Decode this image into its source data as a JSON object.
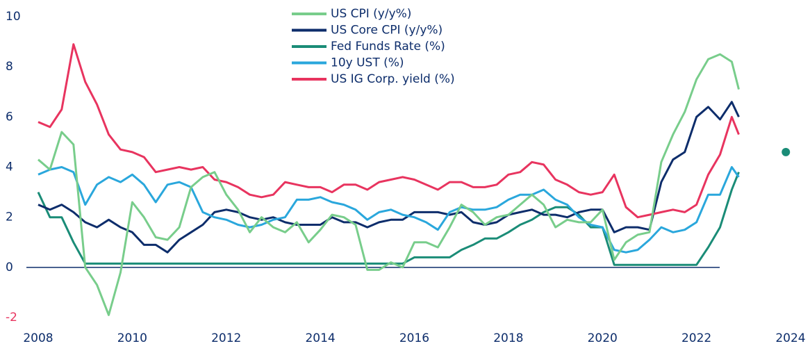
{
  "chart_data": {
    "type": "line",
    "x": [
      2008,
      2008.25,
      2008.5,
      2008.75,
      2009,
      2009.25,
      2009.5,
      2009.75,
      2010,
      2010.25,
      2010.5,
      2010.75,
      2011,
      2011.25,
      2011.5,
      2011.75,
      2012,
      2012.25,
      2012.5,
      2012.75,
      2013,
      2013.25,
      2013.5,
      2013.75,
      2014,
      2014.25,
      2014.5,
      2014.75,
      2015,
      2015.25,
      2015.5,
      2015.75,
      2016,
      2016.25,
      2016.5,
      2016.75,
      2017,
      2017.25,
      2017.5,
      2017.75,
      2018,
      2018.25,
      2018.5,
      2018.75,
      2019,
      2019.25,
      2019.5,
      2019.75,
      2020,
      2020.25,
      2020.5,
      2020.75,
      2021,
      2021.25,
      2021.5,
      2021.75,
      2022,
      2022.25,
      2022.5,
      2022.75,
      2022.9
    ],
    "series": [
      {
        "name": "US CPI (y/y%)",
        "color": "#78cd8b",
        "values": [
          4.3,
          3.9,
          5.4,
          4.9,
          0.0,
          -0.7,
          -1.9,
          -0.2,
          2.6,
          2.0,
          1.2,
          1.1,
          1.6,
          3.2,
          3.6,
          3.8,
          2.9,
          2.3,
          1.4,
          2.0,
          1.6,
          1.4,
          1.8,
          1.0,
          1.5,
          2.1,
          2.0,
          1.7,
          -0.1,
          -0.1,
          0.2,
          0.0,
          1.0,
          1.0,
          0.8,
          1.6,
          2.5,
          2.2,
          1.7,
          2.0,
          2.1,
          2.5,
          2.9,
          2.5,
          1.6,
          1.9,
          1.8,
          1.8,
          2.3,
          0.3,
          1.0,
          1.3,
          1.4,
          4.2,
          5.3,
          6.2,
          7.5,
          8.3,
          8.5,
          8.2,
          7.1
        ]
      },
      {
        "name": "US Core CPI (y/y%)",
        "color": "#0d2d6b",
        "values": [
          2.5,
          2.3,
          2.5,
          2.2,
          1.8,
          1.6,
          1.9,
          1.6,
          1.4,
          0.9,
          0.9,
          0.6,
          1.1,
          1.4,
          1.7,
          2.2,
          2.3,
          2.2,
          2.0,
          1.9,
          2.0,
          1.8,
          1.7,
          1.7,
          1.7,
          2.0,
          1.8,
          1.8,
          1.6,
          1.8,
          1.9,
          1.9,
          2.2,
          2.2,
          2.2,
          2.1,
          2.2,
          1.8,
          1.7,
          1.8,
          2.1,
          2.2,
          2.3,
          2.1,
          2.1,
          2.0,
          2.2,
          2.3,
          2.3,
          1.4,
          1.6,
          1.6,
          1.5,
          3.4,
          4.3,
          4.6,
          6.0,
          6.4,
          5.9,
          6.6,
          6.0
        ]
      },
      {
        "name": "Fed Funds Rate (%)",
        "color": "#1a8c77",
        "values": [
          3.0,
          2.0,
          2.0,
          1.0,
          0.15,
          0.15,
          0.15,
          0.15,
          0.15,
          0.15,
          0.15,
          0.15,
          0.15,
          0.15,
          0.15,
          0.15,
          0.15,
          0.15,
          0.15,
          0.15,
          0.15,
          0.15,
          0.15,
          0.15,
          0.15,
          0.15,
          0.15,
          0.15,
          0.15,
          0.15,
          0.15,
          0.15,
          0.4,
          0.4,
          0.4,
          0.4,
          0.7,
          0.9,
          1.15,
          1.15,
          1.4,
          1.7,
          1.9,
          2.2,
          2.4,
          2.4,
          2.1,
          1.6,
          1.6,
          0.1,
          0.1,
          0.1,
          0.1,
          0.1,
          0.1,
          0.1,
          0.1,
          0.8,
          1.6,
          3.1,
          3.8
        ]
      },
      {
        "name": "10y UST (%)",
        "color": "#2aa7dc",
        "values": [
          3.7,
          3.9,
          4.0,
          3.8,
          2.5,
          3.3,
          3.6,
          3.4,
          3.7,
          3.3,
          2.6,
          3.3,
          3.4,
          3.2,
          2.2,
          2.0,
          1.9,
          1.7,
          1.6,
          1.7,
          1.9,
          2.0,
          2.7,
          2.7,
          2.8,
          2.6,
          2.5,
          2.3,
          1.9,
          2.2,
          2.3,
          2.1,
          2.0,
          1.8,
          1.5,
          2.2,
          2.4,
          2.3,
          2.3,
          2.4,
          2.7,
          2.9,
          2.9,
          3.1,
          2.7,
          2.5,
          2.0,
          1.7,
          1.6,
          0.7,
          0.6,
          0.7,
          1.1,
          1.6,
          1.4,
          1.5,
          1.8,
          2.9,
          2.9,
          4.0,
          3.6
        ]
      },
      {
        "name": "US IG Corp. yield (%)",
        "color": "#e8345f",
        "values": [
          5.8,
          5.6,
          6.3,
          8.9,
          7.4,
          6.5,
          5.3,
          4.7,
          4.6,
          4.4,
          3.8,
          3.9,
          4.0,
          3.9,
          4.0,
          3.5,
          3.4,
          3.2,
          2.9,
          2.8,
          2.9,
          3.4,
          3.3,
          3.2,
          3.2,
          3.0,
          3.3,
          3.3,
          3.1,
          3.4,
          3.5,
          3.6,
          3.5,
          3.3,
          3.1,
          3.4,
          3.4,
          3.2,
          3.2,
          3.3,
          3.7,
          3.8,
          4.2,
          4.1,
          3.5,
          3.3,
          3.0,
          2.9,
          3.0,
          3.7,
          2.4,
          2.0,
          2.1,
          2.2,
          2.3,
          2.2,
          2.5,
          3.7,
          4.5,
          6.0,
          5.3
        ]
      }
    ],
    "points": [
      {
        "x": 2023.9,
        "y": 4.6,
        "color": "#1a8c77"
      }
    ],
    "xlim": [
      2008,
      2024
    ],
    "xticks": [
      2008,
      2010,
      2012,
      2014,
      2016,
      2018,
      2020,
      2022,
      2024
    ],
    "ylim": [
      -2,
      10
    ],
    "yticks": [
      -2,
      0,
      2,
      4,
      6,
      8,
      10
    ],
    "negative_tick_color": "#e8345f",
    "zero_line_color": "#0d2d6b"
  }
}
